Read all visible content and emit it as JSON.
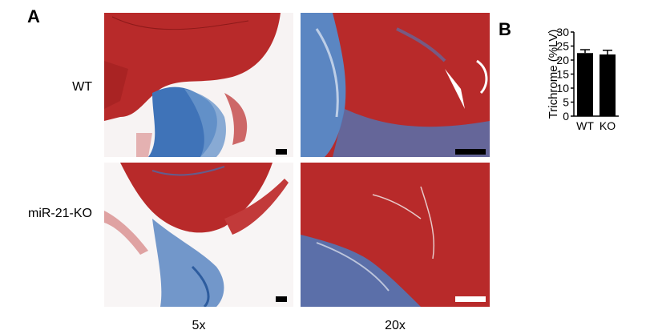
{
  "panel_a": {
    "letter": "A",
    "row_labels": [
      "WT",
      "miR-21-KO"
    ],
    "col_labels": [
      "5x",
      "20x"
    ]
  },
  "panel_b": {
    "letter": "B"
  },
  "colors": {
    "myocardium_red": "#b82a2a",
    "collagen_blue": "#3f73b8",
    "background_white": "#ffffff",
    "bar_fill": "#000000"
  },
  "chart_data": {
    "type": "bar",
    "categories": [
      "WT",
      "KO"
    ],
    "values": [
      22.5,
      22.0
    ],
    "errors": [
      1.2,
      1.5
    ],
    "xlabel": "",
    "ylabel": "Trichrome (%LV)",
    "ylim": [
      0,
      30
    ],
    "yticks": [
      "0",
      "5",
      "10",
      "15",
      "20",
      "25",
      "30"
    ],
    "grid": false
  }
}
